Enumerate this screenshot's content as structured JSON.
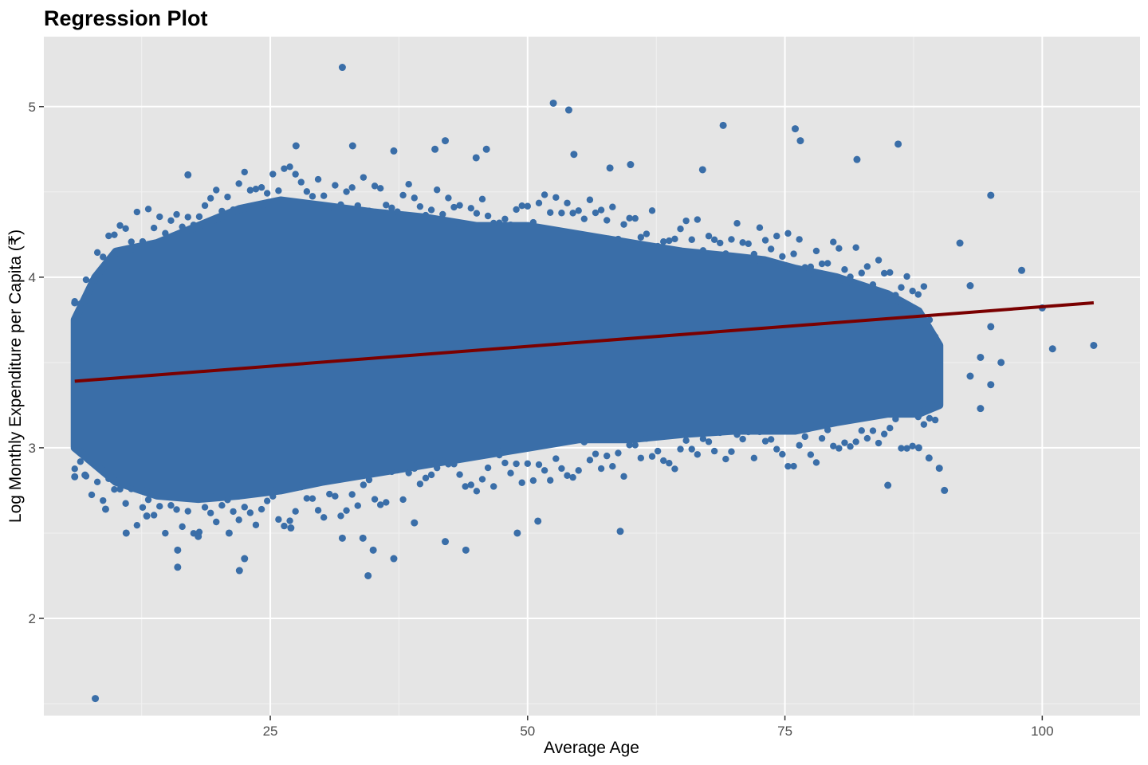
{
  "chart_data": {
    "type": "scatter",
    "title": "Regression Plot",
    "xlabel": "Average Age",
    "ylabel": "Log Monthly Expenditure per Capita (₹)",
    "xlim": [
      3.0,
      109.5
    ],
    "ylim": [
      1.43,
      5.41
    ],
    "x_ticks": [
      25,
      50,
      75,
      100
    ],
    "y_ticks": [
      2,
      3,
      4,
      5
    ],
    "grid": true,
    "legend": "none",
    "colors": {
      "panel": "#e5e5e5",
      "grid_major": "#ffffff",
      "grid_minor": "#f1f1f1",
      "points": "#3a6ea8",
      "fit_line": "#7a0000"
    },
    "dense_cloud": {
      "description_range": "x 6 to 95",
      "upper_envelope": [
        [
          6,
          3.75
        ],
        [
          8,
          4.0
        ],
        [
          10,
          4.15
        ],
        [
          14,
          4.2
        ],
        [
          18,
          4.3
        ],
        [
          22,
          4.4
        ],
        [
          26,
          4.45
        ],
        [
          30,
          4.42
        ],
        [
          35,
          4.38
        ],
        [
          40,
          4.35
        ],
        [
          45,
          4.3
        ],
        [
          50,
          4.3
        ],
        [
          55,
          4.25
        ],
        [
          60,
          4.2
        ],
        [
          65,
          4.15
        ],
        [
          70,
          4.12
        ],
        [
          73,
          4.1
        ],
        [
          76,
          4.05
        ],
        [
          80,
          4.0
        ],
        [
          85,
          3.9
        ],
        [
          88,
          3.8
        ],
        [
          90,
          3.6
        ]
      ],
      "lower_envelope": [
        [
          6,
          3.0
        ],
        [
          8,
          2.9
        ],
        [
          10,
          2.8
        ],
        [
          14,
          2.72
        ],
        [
          18,
          2.7
        ],
        [
          22,
          2.72
        ],
        [
          26,
          2.75
        ],
        [
          30,
          2.8
        ],
        [
          35,
          2.85
        ],
        [
          40,
          2.9
        ],
        [
          45,
          2.95
        ],
        [
          50,
          3.0
        ],
        [
          55,
          3.05
        ],
        [
          60,
          3.05
        ],
        [
          65,
          3.08
        ],
        [
          70,
          3.1
        ],
        [
          73,
          3.1
        ],
        [
          76,
          3.1
        ],
        [
          80,
          3.15
        ],
        [
          85,
          3.2
        ],
        [
          88,
          3.2
        ],
        [
          90,
          3.25
        ]
      ]
    },
    "outliers": [
      [
        6,
        3.85
      ],
      [
        6,
        2.83
      ],
      [
        6,
        3.3
      ],
      [
        7,
        2.84
      ],
      [
        8,
        1.53
      ],
      [
        9,
        2.64
      ],
      [
        10,
        4.06
      ],
      [
        11,
        2.5
      ],
      [
        12,
        4.16
      ],
      [
        13,
        2.6
      ],
      [
        16,
        2.3
      ],
      [
        16,
        2.4
      ],
      [
        17,
        4.6
      ],
      [
        18,
        2.48
      ],
      [
        21,
        2.5
      ],
      [
        22,
        2.28
      ],
      [
        22.5,
        2.35
      ],
      [
        27,
        2.53
      ],
      [
        27.5,
        4.77
      ],
      [
        32,
        5.23
      ],
      [
        32,
        2.47
      ],
      [
        33,
        4.77
      ],
      [
        34,
        2.47
      ],
      [
        34.5,
        2.25
      ],
      [
        35,
        2.4
      ],
      [
        37,
        2.35
      ],
      [
        37,
        4.74
      ],
      [
        39,
        2.56
      ],
      [
        41,
        4.75
      ],
      [
        42,
        4.8
      ],
      [
        42,
        2.45
      ],
      [
        44,
        2.4
      ],
      [
        45,
        4.7
      ],
      [
        46,
        4.75
      ],
      [
        49,
        2.5
      ],
      [
        51,
        2.57
      ],
      [
        52.5,
        5.02
      ],
      [
        54,
        4.98
      ],
      [
        54.5,
        4.72
      ],
      [
        58,
        4.64
      ],
      [
        59,
        2.51
      ],
      [
        60,
        4.66
      ],
      [
        67,
        4.63
      ],
      [
        69,
        4.89
      ],
      [
        76,
        4.87
      ],
      [
        76.5,
        4.8
      ],
      [
        82,
        4.69
      ],
      [
        85,
        2.78
      ],
      [
        86,
        4.78
      ],
      [
        88,
        3.0
      ],
      [
        89,
        2.94
      ],
      [
        90,
        2.88
      ],
      [
        90.5,
        2.75
      ],
      [
        90,
        3.45
      ],
      [
        92,
        4.2
      ],
      [
        93,
        3.95
      ],
      [
        93,
        3.42
      ],
      [
        94,
        3.53
      ],
      [
        94,
        3.23
      ],
      [
        95,
        4.48
      ],
      [
        95,
        3.71
      ],
      [
        95,
        3.37
      ],
      [
        96,
        3.5
      ],
      [
        98,
        4.04
      ],
      [
        100,
        3.82
      ],
      [
        101,
        3.58
      ],
      [
        105,
        3.6
      ]
    ],
    "regression_line": {
      "x": [
        6,
        105
      ],
      "y": [
        3.39,
        3.85
      ]
    }
  }
}
